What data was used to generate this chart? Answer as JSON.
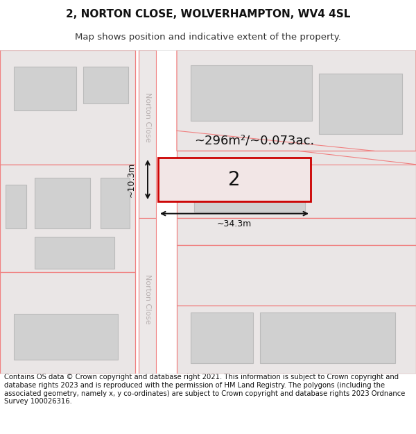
{
  "title_line1": "2, NORTON CLOSE, WOLVERHAMPTON, WV4 4SL",
  "title_line2": "Map shows position and indicative extent of the property.",
  "footer_text": "Contains OS data © Crown copyright and database right 2021. This information is subject to Crown copyright and database rights 2023 and is reproduced with the permission of HM Land Registry. The polygons (including the associated geometry, namely x, y co-ordinates) are subject to Crown copyright and database rights 2023 Ordnance Survey 100026316.",
  "bg_color": "#ffffff",
  "road_line_color": "#f08080",
  "dim_color": "#222222",
  "area_text": "~296m²/~0.073ac.",
  "label_text": "2",
  "dim_width": "~34.3m",
  "dim_height": "~10.3m",
  "road_label": "Norton Close",
  "title_fontsize": 11,
  "subtitle_fontsize": 9.5,
  "footer_fontsize": 7.2
}
